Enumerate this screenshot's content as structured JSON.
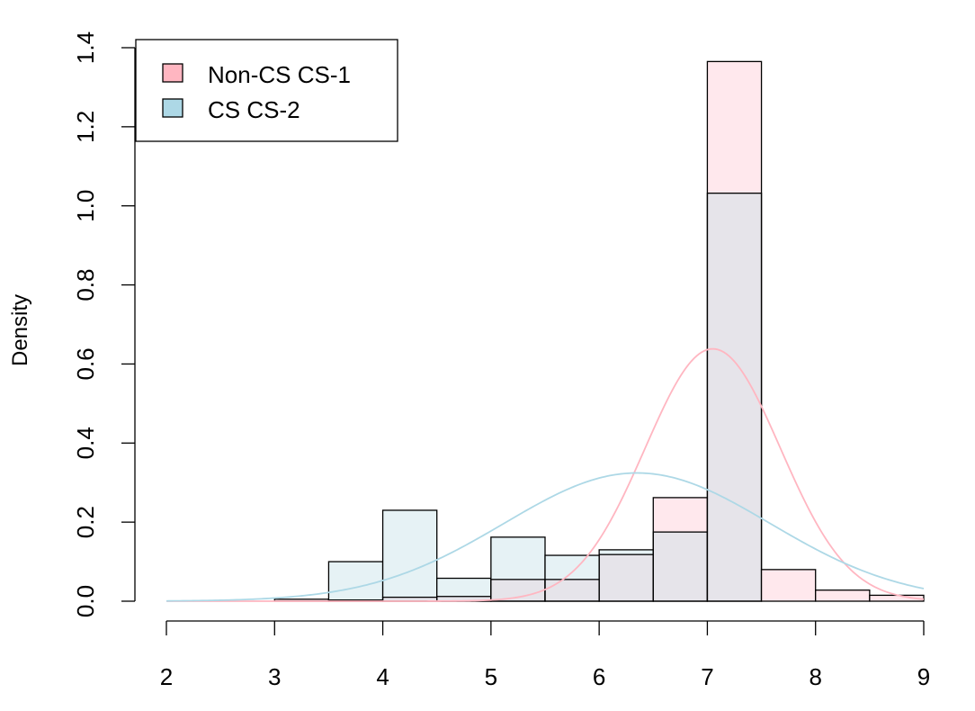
{
  "chart_data": {
    "type": "bar",
    "title": "",
    "xlabel": "",
    "ylabel": "Density",
    "xlim": [
      2,
      9
    ],
    "ylim": [
      0,
      1.4
    ],
    "x_ticks": [
      "2",
      "3",
      "4",
      "5",
      "6",
      "7",
      "8",
      "9"
    ],
    "y_ticks": [
      "0.0",
      "0.2",
      "0.4",
      "0.6",
      "0.8",
      "1.0",
      "1.2",
      "1.4"
    ],
    "bin_edges": [
      3,
      3.5,
      4,
      4.5,
      5,
      5.5,
      6,
      6.5,
      7,
      7.5,
      8,
      8.5,
      9
    ],
    "series": [
      {
        "name": "Non-CS CS-1",
        "color": "#ffb6c1",
        "fill": "#ffe8ed",
        "values": [
          0.005,
          0.003,
          0.01,
          0.012,
          0.055,
          0.055,
          0.118,
          0.262,
          1.365,
          0.08,
          0.028,
          0.015
        ],
        "curve_mean": 7.05,
        "curve_sd": 0.625
      },
      {
        "name": "CS CS-2",
        "color": "#add8e6",
        "fill": "#e6f2f5",
        "values": [
          0,
          0.1,
          0.23,
          0.058,
          0.162,
          0.116,
          0.13,
          0.175,
          1.032,
          0,
          0,
          0
        ],
        "curve_mean": 6.35,
        "curve_sd": 1.23
      }
    ],
    "overlap_color": "#e6e4ea",
    "legend_position": "top-left",
    "grid": false
  }
}
